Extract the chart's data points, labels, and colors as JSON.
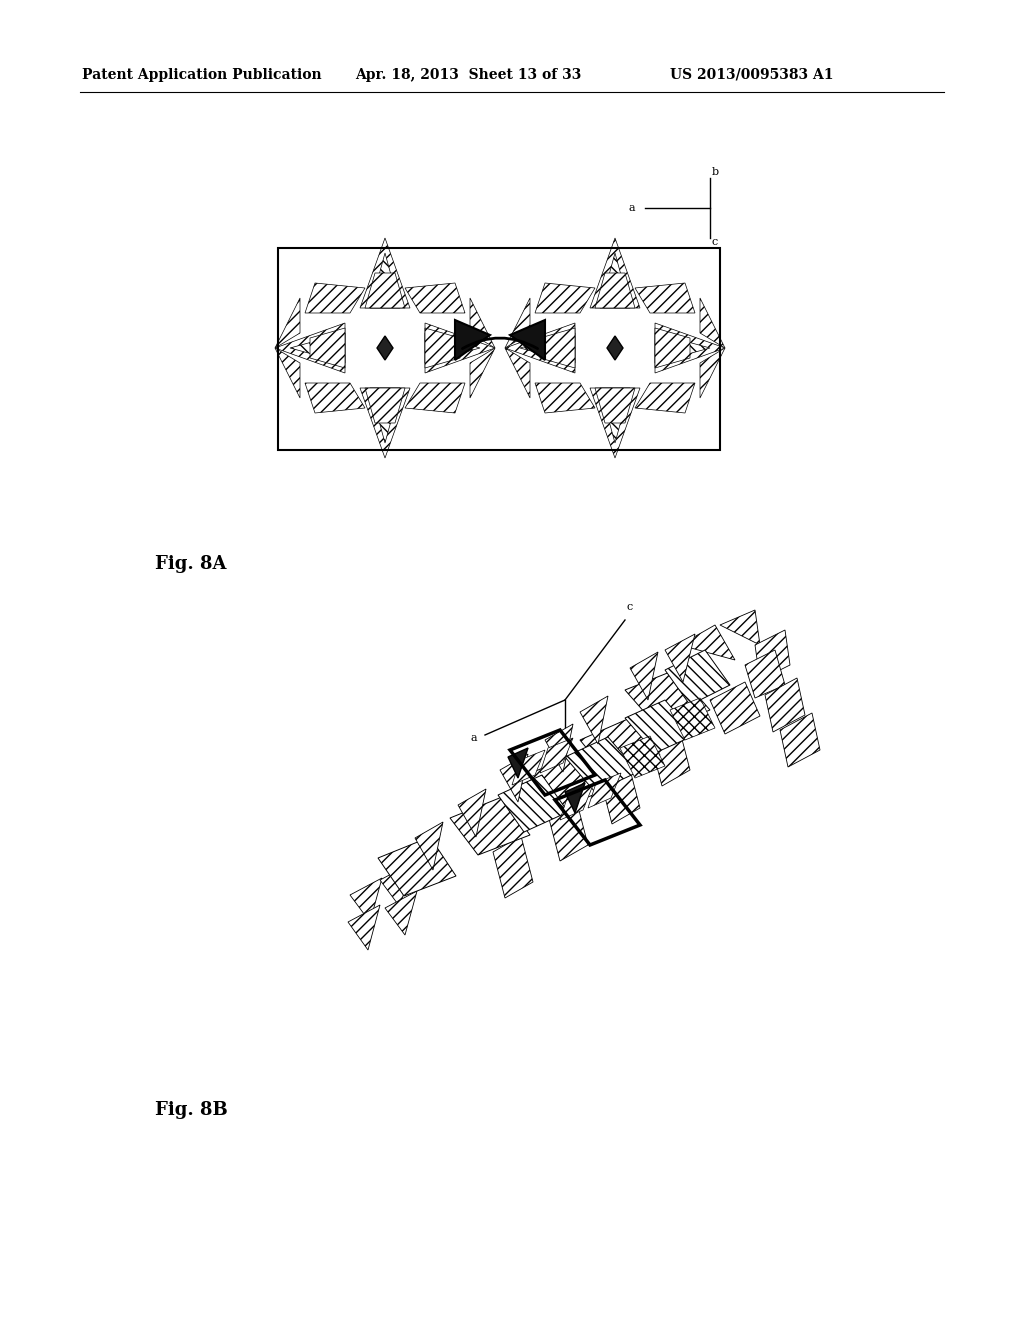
{
  "header_left": "Patent Application Publication",
  "header_mid": "Apr. 18, 2013  Sheet 13 of 33",
  "header_right": "US 2013/0095383 A1",
  "fig8a_label": "Fig. 8A",
  "fig8b_label": "Fig. 8B",
  "bg_color": "#ffffff"
}
